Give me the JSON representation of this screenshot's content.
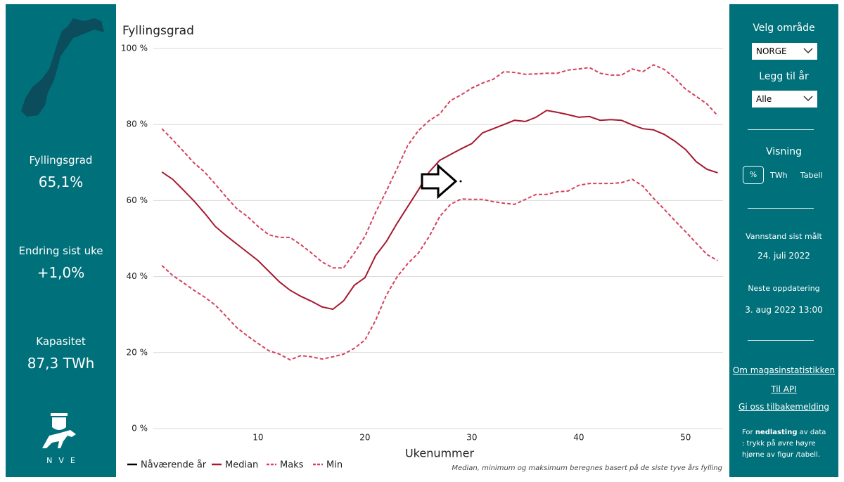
{
  "chart_data": {
    "type": "line",
    "title": "Fyllingsgrad",
    "x_label": "Ukenummer",
    "note": "Median, minimum og maksimum beregnes basert på de siste tyve års fylling",
    "x": [
      1,
      2,
      3,
      4,
      5,
      6,
      7,
      8,
      9,
      10,
      11,
      12,
      13,
      14,
      15,
      16,
      17,
      18,
      19,
      20,
      21,
      22,
      23,
      24,
      25,
      26,
      27,
      28,
      29,
      30,
      31,
      32,
      33,
      34,
      35,
      36,
      37,
      38,
      39,
      40,
      41,
      42,
      43,
      44,
      45,
      46,
      47,
      48,
      49,
      50,
      51,
      52,
      53
    ],
    "xlim": [
      0.2,
      53.5
    ],
    "xticks": [
      10,
      20,
      30,
      40,
      50
    ],
    "ylim": [
      0,
      100
    ],
    "yticks": [
      {
        "value": 0,
        "label": "0 %"
      },
      {
        "value": 20,
        "label": "20 %"
      },
      {
        "value": 40,
        "label": "40 %"
      },
      {
        "value": 60,
        "label": "60 %"
      },
      {
        "value": 80,
        "label": "80 %"
      },
      {
        "value": 100,
        "label": "100 %"
      }
    ],
    "grid": true,
    "legend": "bottom",
    "series": [
      {
        "name": "Nåværende år",
        "color": "#000000",
        "dashed": false,
        "values": [
          null,
          null,
          null,
          null,
          null,
          null,
          null,
          null,
          null,
          null,
          null,
          null,
          null,
          null,
          null,
          null,
          null,
          null,
          null,
          null,
          null,
          null,
          null,
          null,
          null,
          null,
          null,
          null,
          null,
          null,
          null,
          null,
          null,
          null,
          null,
          null,
          null,
          null,
          null,
          null,
          null,
          null,
          null,
          null,
          null,
          null,
          null,
          null,
          null,
          null,
          null,
          null,
          null
        ]
      },
      {
        "name": "Median",
        "color": "#a6192e",
        "dashed": false,
        "values": [
          67.5,
          65.6,
          62.8,
          59.9,
          56.7,
          53.2,
          50.8,
          48.6,
          46.4,
          44.2,
          41.4,
          38.6,
          36.4,
          34.8,
          33.5,
          32.0,
          31.4,
          33.6,
          37.7,
          39.7,
          45.5,
          49.2,
          54.0,
          58.4,
          62.8,
          67.5,
          70.6,
          72.1,
          73.6,
          75.0,
          77.8,
          78.9,
          80.0,
          81.1,
          80.8,
          81.9,
          83.7,
          83.2,
          82.6,
          81.9,
          82.1,
          81.1,
          81.3,
          81.1,
          79.9,
          78.9,
          78.6,
          77.4,
          75.6,
          73.4,
          70.2,
          68.2,
          67.3
        ]
      },
      {
        "name": "Maks",
        "color": "#d4405c",
        "dashed": true,
        "values": [
          78.9,
          76.0,
          73.0,
          69.9,
          67.5,
          64.3,
          61.0,
          57.9,
          55.8,
          53.2,
          51.0,
          50.3,
          50.3,
          48.4,
          46.2,
          43.8,
          42.3,
          42.3,
          46.2,
          50.6,
          56.9,
          62.5,
          68.4,
          74.5,
          78.4,
          81.0,
          82.8,
          86.3,
          87.8,
          89.6,
          90.9,
          91.9,
          93.9,
          93.7,
          93.2,
          93.3,
          93.5,
          93.5,
          94.3,
          94.6,
          95.0,
          93.5,
          93.0,
          93.0,
          94.6,
          93.9,
          95.7,
          94.5,
          92.2,
          89.3,
          87.4,
          85.4,
          82.3
        ]
      },
      {
        "name": "Min",
        "color": "#d4405c",
        "dashed": true,
        "values": [
          42.9,
          40.3,
          38.4,
          36.4,
          34.6,
          32.5,
          29.6,
          26.6,
          24.4,
          22.4,
          20.5,
          19.6,
          18.1,
          19.2,
          18.9,
          18.3,
          18.9,
          19.6,
          21.1,
          23.3,
          28.5,
          35.1,
          39.9,
          43.4,
          46.2,
          50.5,
          55.8,
          59.0,
          60.4,
          60.3,
          60.3,
          59.7,
          59.3,
          59.0,
          60.3,
          61.6,
          61.6,
          62.3,
          62.5,
          64.0,
          64.5,
          64.5,
          64.5,
          64.7,
          65.6,
          63.8,
          60.6,
          57.7,
          54.7,
          51.8,
          48.8,
          45.8,
          44.2
        ]
      }
    ]
  },
  "left_panel": {
    "stats": [
      {
        "label": "Fyllingsgrad",
        "value": "65,1%"
      },
      {
        "label": "Endring sist uke",
        "value": "+1,0%"
      },
      {
        "label": "Kapasitet",
        "value": "87,3 TWh"
      }
    ],
    "logo_text": "NVE"
  },
  "right_panel": {
    "area_label": "Velg område",
    "area_value": "NORGE",
    "year_label": "Legg til år",
    "year_value": "Alle",
    "view_label": "Visning",
    "view_options": [
      "%",
      "TWh",
      "Tabell"
    ],
    "measured_label": "Vannstand sist målt",
    "measured_value": "24. juli 2022",
    "next_label": "Neste oppdatering",
    "next_value": "3. aug 2022 13:00",
    "links": [
      "Om magasinstatistikken",
      "Til API",
      "Gi oss tilbakemelding"
    ],
    "download_note": {
      "before": "For ",
      "bold": "nedlasting",
      "after": " av data : trykk på øvre høyre hjørne av figur /tabell."
    }
  }
}
